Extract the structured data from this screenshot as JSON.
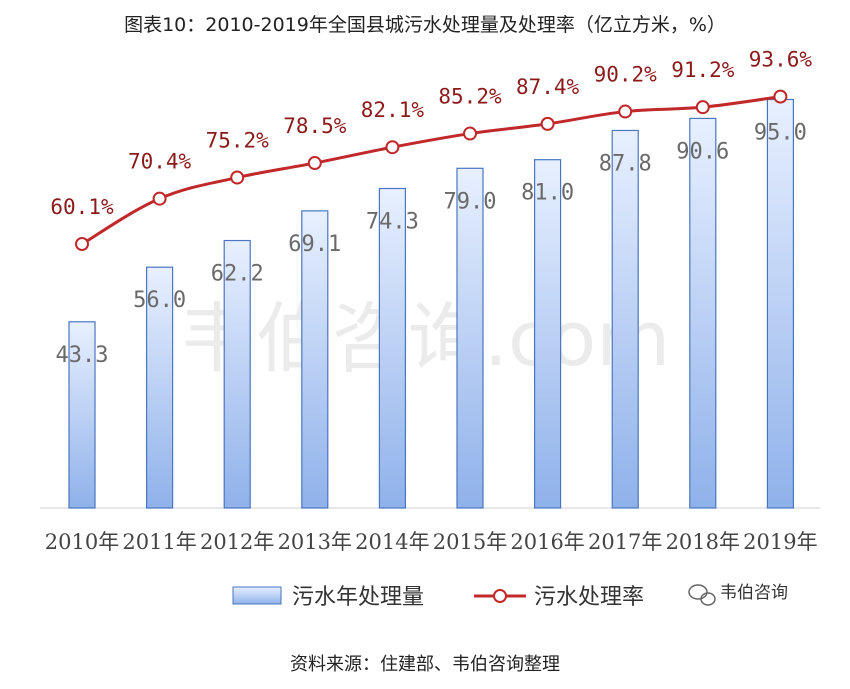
{
  "title": "图表10：2010-2019年全国县城污水处理量及处理率（亿立方米，%）",
  "source": "资料来源：住建部、韦伯咨询整理",
  "watermark": "韦伯咨询.com",
  "brand": "韦伯咨询",
  "colors": {
    "bar_fill_top": "#e8f0ff",
    "bar_fill_bottom": "#8fb1ea",
    "bar_stroke": "#4a76c2",
    "line": "#c0282a",
    "line_label": "#8c1a1a",
    "bar_label": "#6a6a6a"
  },
  "chart_data": {
    "type": "bar",
    "categories": [
      "2010年",
      "2011年",
      "2012年",
      "2013年",
      "2014年",
      "2015年",
      "2016年",
      "2017年",
      "2018年",
      "2019年"
    ],
    "series": [
      {
        "name": "污水年处理量",
        "type": "bar",
        "values": [
          43.3,
          56.0,
          62.2,
          69.1,
          74.3,
          79.0,
          81.0,
          87.8,
          90.6,
          95.0
        ],
        "labels": [
          "43.3",
          "56.0",
          "62.2",
          "69.1",
          "74.3",
          "79.0",
          "81.0",
          "87.8",
          "90.6",
          "95.0"
        ]
      },
      {
        "name": "污水处理率",
        "type": "line",
        "values": [
          60.1,
          70.4,
          75.2,
          78.5,
          82.1,
          85.2,
          87.4,
          90.2,
          91.2,
          93.6
        ],
        "labels": [
          "60.1%",
          "70.4%",
          "75.2%",
          "78.5%",
          "82.1%",
          "85.2%",
          "87.4%",
          "90.2%",
          "91.2%",
          "93.6%"
        ]
      }
    ],
    "ylim_bar": [
      0,
      100
    ],
    "ylim_line": [
      0,
      100
    ],
    "grid": false,
    "legend_position": "bottom"
  }
}
